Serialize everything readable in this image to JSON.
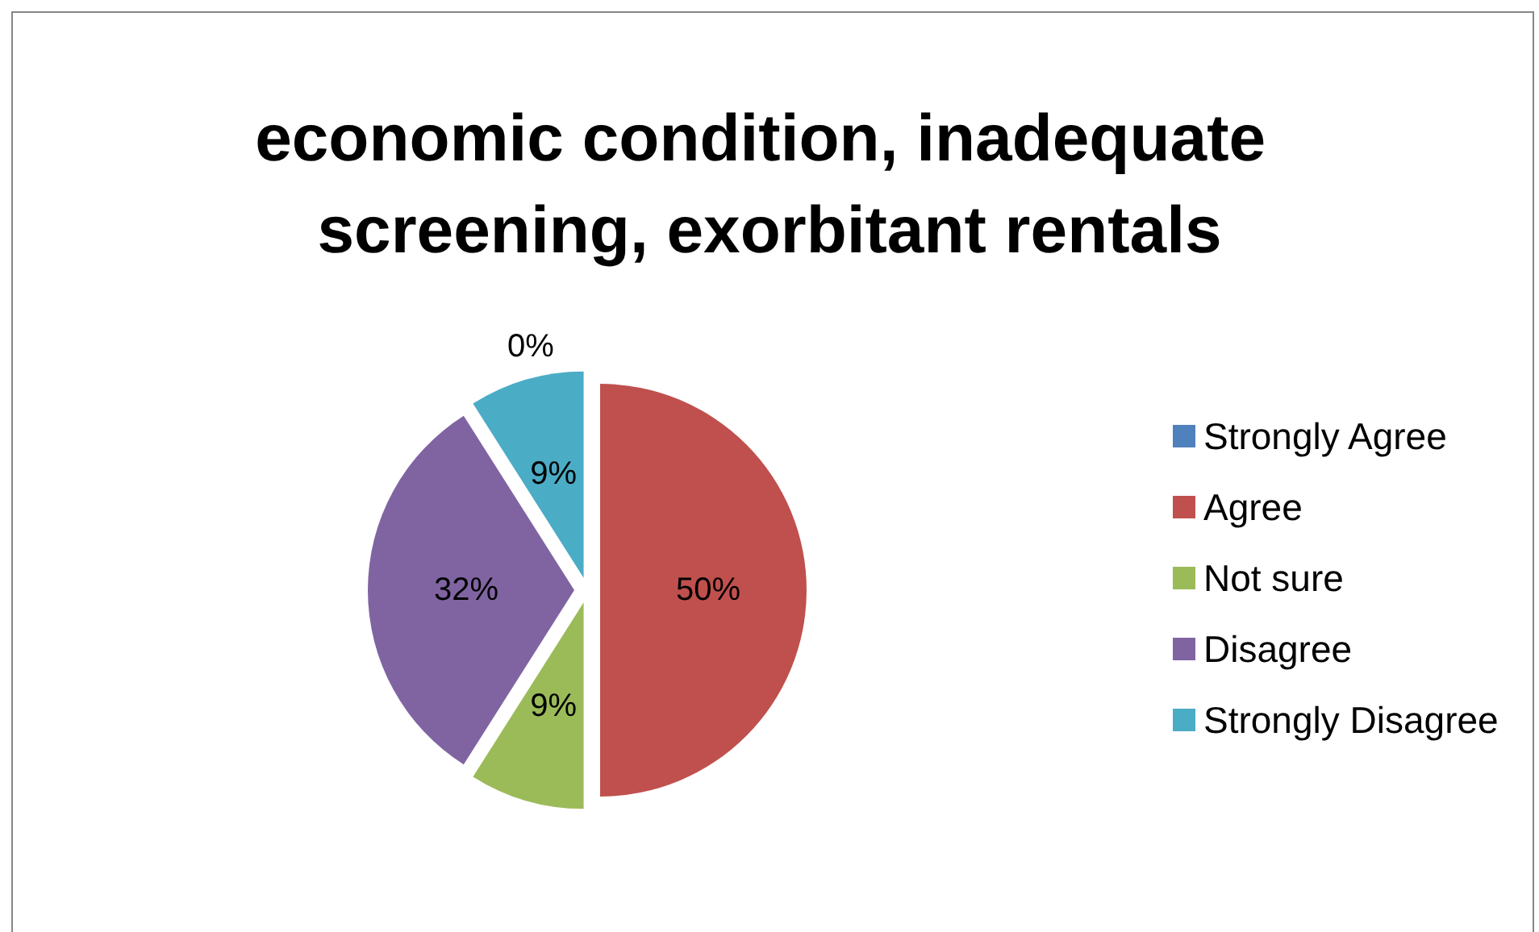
{
  "chart_data": {
    "type": "pie",
    "title": "economic condition, inadequate screening, exorbitant rentals",
    "categories": [
      "Strongly Agree",
      "Agree",
      "Not sure",
      "Disagree",
      "Strongly Disagree"
    ],
    "values": [
      0,
      50,
      9,
      32,
      9
    ],
    "colors": [
      "#4f81bd",
      "#c0504d",
      "#9bbb59",
      "#8064a2",
      "#4bacc6"
    ],
    "value_labels": [
      "0%",
      "50%",
      "9%",
      "32%",
      "9%"
    ],
    "legend": "right"
  }
}
